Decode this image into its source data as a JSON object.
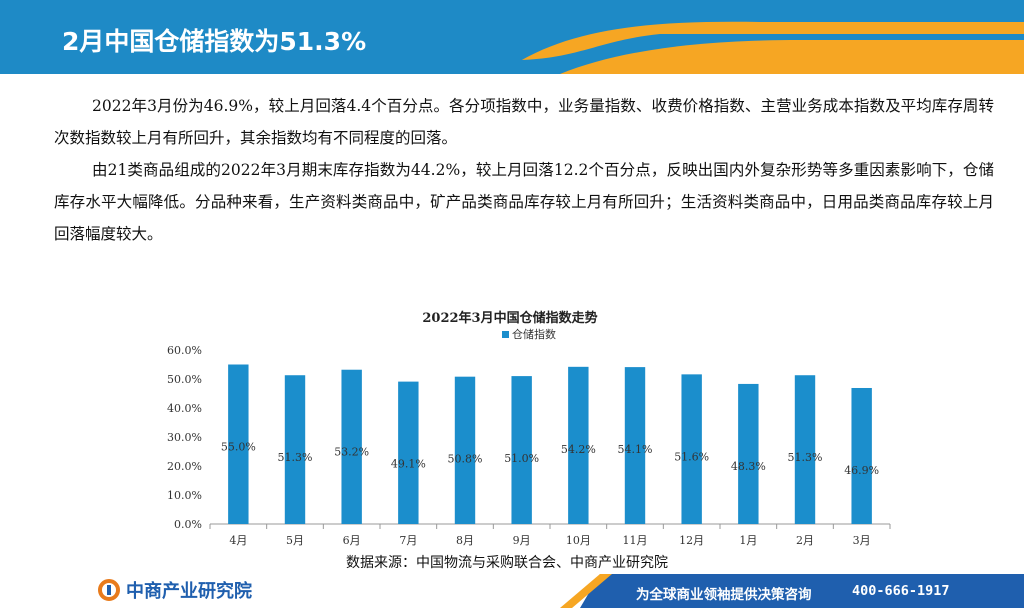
{
  "header": {
    "title": "2月中国仓储指数为51.3%"
  },
  "paragraphs": [
    "2022年3月份为46.9%，较上月回落4.4个百分点。各分项指数中，业务量指数、收费价格指数、主营业务成本指数及平均库存周转次数指数较上月有所回升，其余指数均有不同程度的回落。",
    "由21类商品组成的2022年3月期末库存指数为44.2%，较上月回落12.2个百分点，反映出国内外复杂形势等多重因素影响下，仓储库存水平大幅降低。分品种来看，生产资料类商品中，矿产品类商品库存较上月有所回升；生活资料类商品中，日用品类商品库存较上月回落幅度较大。"
  ],
  "chart_data": {
    "type": "bar",
    "title": "2022年3月中国仓储指数走势",
    "categories": [
      "4月",
      "5月",
      "6月",
      "7月",
      "8月",
      "9月",
      "10月",
      "11月",
      "12月",
      "1月",
      "2月",
      "3月"
    ],
    "series": [
      {
        "name": "仓储指数",
        "values": [
          55.0,
          51.3,
          53.2,
          49.1,
          50.8,
          51.0,
          54.2,
          54.1,
          51.6,
          48.3,
          51.3,
          46.9
        ],
        "labels": [
          "55.0%",
          "51.3%",
          "53.2%",
          "49.1%",
          "50.8%",
          "51.0%",
          "54.2%",
          "54.1%",
          "51.6%",
          "48.3%",
          "51.3%",
          "46.9%"
        ]
      }
    ],
    "yticks": [
      "0.0%",
      "10.0%",
      "20.0%",
      "30.0%",
      "40.0%",
      "50.0%",
      "60.0%"
    ],
    "ylim": [
      0,
      60
    ],
    "bar_color": "#1b8ecc",
    "legend_position": "top"
  },
  "source": "数据来源：中国物流与采购联合会、中商产业研究院",
  "footer": {
    "logo_text": "中商产业研究院",
    "slogan": "为全球商业领袖提供决策咨询",
    "phone": "400-666-1917"
  },
  "colors": {
    "header_blue": "#1e8ac6",
    "accent_orange": "#f6a623",
    "bar": "#1b8ecc"
  }
}
